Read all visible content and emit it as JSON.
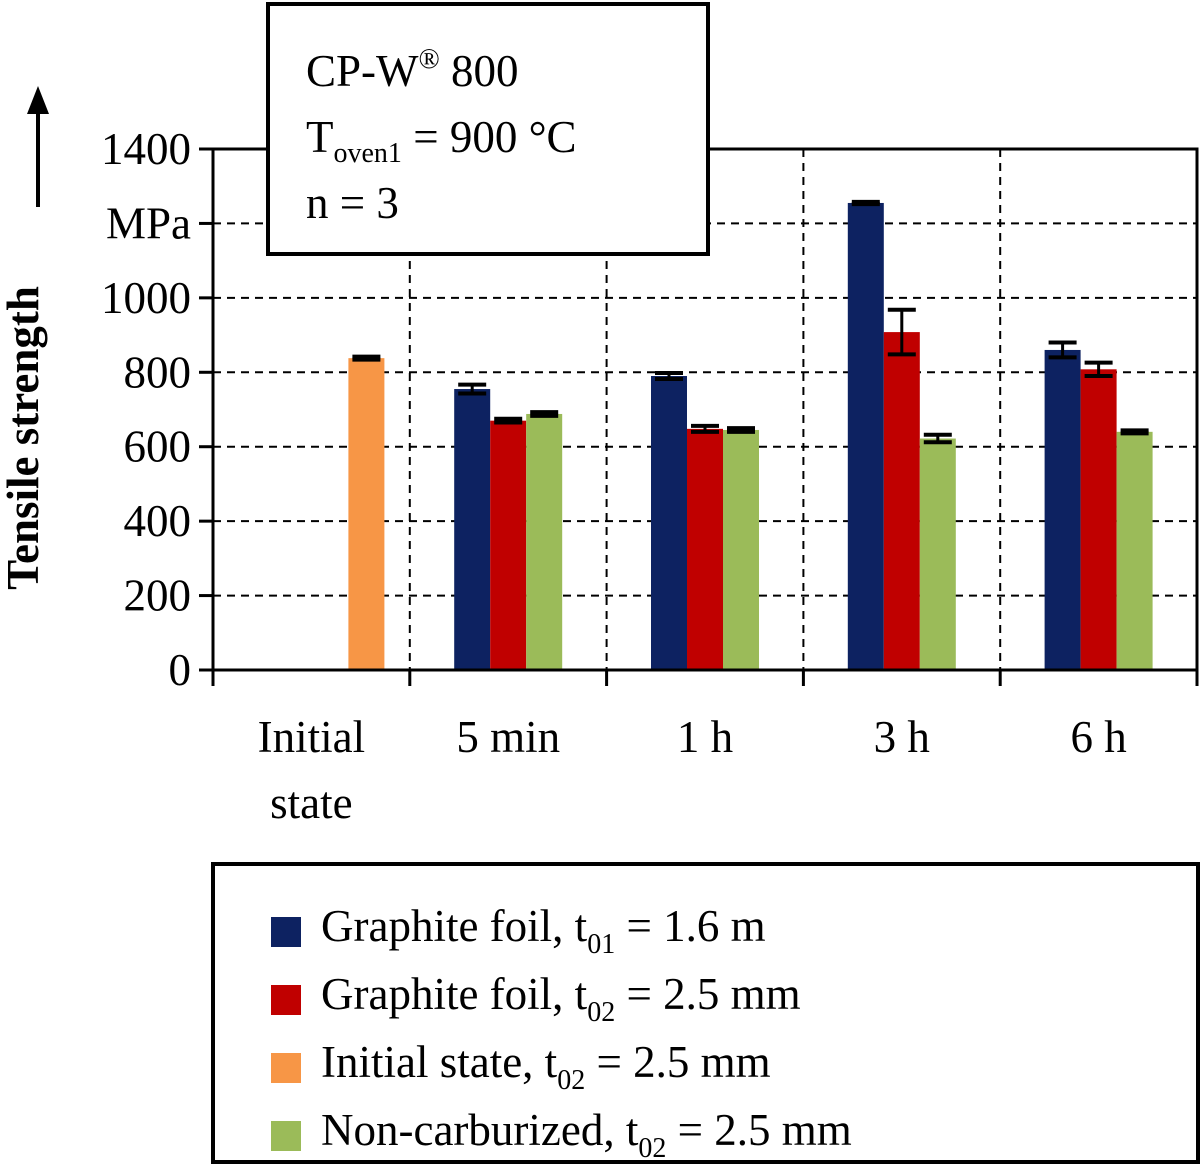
{
  "chart_data": {
    "type": "bar",
    "ylabel": "Tensile strength",
    "yunit": "MPa",
    "ylim": [
      0,
      1400
    ],
    "yticks": [
      0,
      200,
      400,
      600,
      800,
      1000,
      1200,
      1400
    ],
    "ytick_labels": [
      "0",
      "200",
      "400",
      "600",
      "800",
      "1000",
      "",
      "1400"
    ],
    "grid": true,
    "categories": [
      "Initial state",
      "5 min",
      "1 h",
      "3 h",
      "6 h"
    ],
    "category_lines": [
      [
        "Initial",
        "state"
      ],
      [
        "5 min"
      ],
      [
        "1 h"
      ],
      [
        "3 h"
      ],
      [
        "6 h"
      ]
    ],
    "series": [
      {
        "name_parts": {
          "main": "Graphite foil, t",
          "sub": "01",
          "tail": " = 1.6 m"
        },
        "color": "#0d2261",
        "values": [
          null,
          755,
          790,
          1255,
          860
        ],
        "errors": [
          null,
          12,
          8,
          3,
          20
        ]
      },
      {
        "name_parts": {
          "main": "Graphite foil, t",
          "sub": "02",
          "tail": " = 2.5 mm"
        },
        "color": "#c00000",
        "values": [
          null,
          670,
          648,
          908,
          808
        ],
        "errors": [
          null,
          5,
          8,
          60,
          18
        ]
      },
      {
        "name_parts": {
          "main": "Initial state, t",
          "sub": "02",
          "tail": " = 2.5 mm"
        },
        "color": "#f79646",
        "values": [
          838,
          null,
          null,
          null,
          null
        ],
        "errors": [
          4,
          null,
          null,
          null,
          null
        ]
      },
      {
        "name_parts": {
          "main": "Non-carburized, t",
          "sub": "02",
          "tail": " = 2.5 mm"
        },
        "color": "#9bbb59",
        "values": [
          null,
          688,
          645,
          622,
          640
        ],
        "errors": [
          null,
          5,
          5,
          10,
          4
        ]
      }
    ],
    "annotation": {
      "material": {
        "main": "CP-W",
        "sup": "®",
        "tail": " 800"
      },
      "temperature": {
        "main": "T",
        "sub": "oven1",
        "tail": " = 900 °C"
      },
      "count": "n = 3"
    },
    "legend_position": "bottom"
  }
}
